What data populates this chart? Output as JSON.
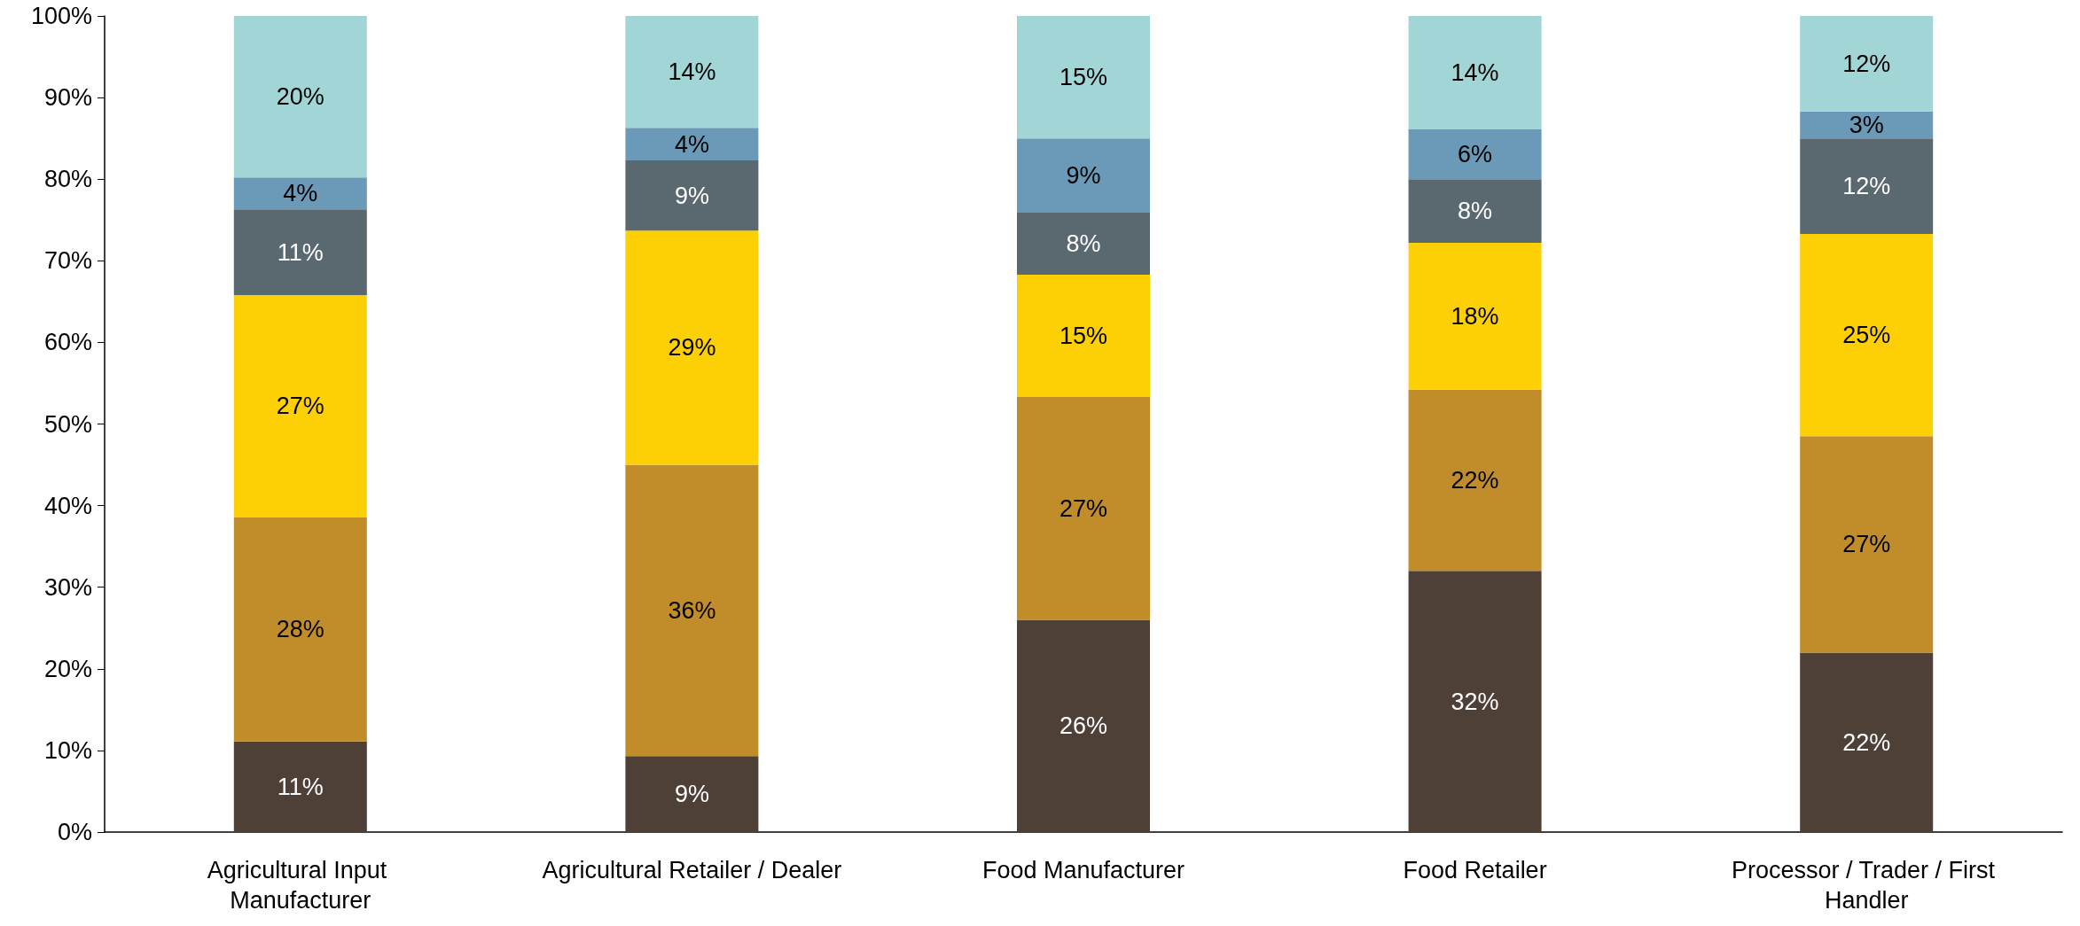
{
  "chart_data": {
    "type": "bar",
    "stacked": true,
    "categories": [
      "Agricultural Input Manufacturer",
      "Agricultural Retailer / Dealer",
      "Food Manufacturer",
      "Food Retailer",
      "Processor / Trader / First Handler"
    ],
    "series": [
      {
        "color": "#4e3f37",
        "values": [
          11.1,
          9.3,
          26.0,
          32.0,
          22.0
        ],
        "value_labels": [
          "11%",
          "9%",
          "26%",
          "32%",
          "22%"
        ]
      },
      {
        "color": "#c18d2b",
        "values": [
          27.5,
          35.7,
          27.3,
          22.2,
          26.5
        ],
        "value_labels": [
          "28%",
          "36%",
          "27%",
          "22%",
          "27%"
        ]
      },
      {
        "color": "#fdd006",
        "values": [
          27.2,
          28.7,
          15.0,
          18.0,
          24.8
        ],
        "value_labels": [
          "27%",
          "29%",
          "15%",
          "18%",
          "25%"
        ]
      },
      {
        "color": "#5a6870",
        "values": [
          10.5,
          8.6,
          7.6,
          7.8,
          11.7
        ],
        "value_labels": [
          "11%",
          "9%",
          "8%",
          "8%",
          "12%"
        ]
      },
      {
        "color": "#6a9ab7",
        "values": [
          3.9,
          4.0,
          9.1,
          6.1,
          3.3
        ],
        "value_labels": [
          "4%",
          "4%",
          "9%",
          "6%",
          "3%"
        ]
      },
      {
        "color": "#a2d5d5",
        "values": [
          19.8,
          13.7,
          15.0,
          13.9,
          11.7
        ],
        "value_labels": [
          "20%",
          "14%",
          "15%",
          "14%",
          "12%"
        ]
      }
    ],
    "ylim": [
      0,
      100
    ],
    "yticks": [
      {
        "value": 0,
        "label": "0%"
      },
      {
        "value": 10,
        "label": "10%"
      },
      {
        "value": 20,
        "label": "20%"
      },
      {
        "value": 30,
        "label": "30%"
      },
      {
        "value": 40,
        "label": "40%"
      },
      {
        "value": 50,
        "label": "50%"
      },
      {
        "value": 60,
        "label": "60%"
      },
      {
        "value": 70,
        "label": "70%"
      },
      {
        "value": 80,
        "label": "80%"
      },
      {
        "value": 90,
        "label": "90%"
      },
      {
        "value": 100,
        "label": "100%"
      }
    ],
    "grid": false
  }
}
